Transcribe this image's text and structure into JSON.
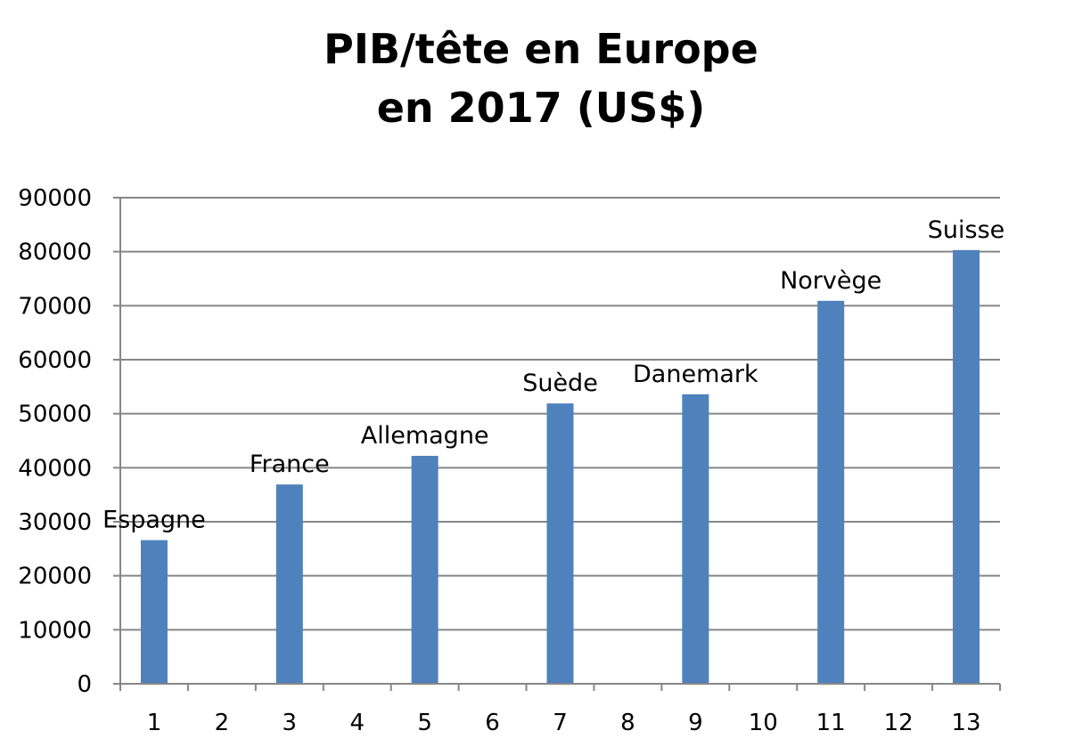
{
  "chart_data": {
    "type": "bar",
    "title": [
      "PIB/tête en Europe",
      "en 2017 (US$)"
    ],
    "xlabel": "",
    "ylabel": "",
    "categories": [
      "1",
      "2",
      "3",
      "4",
      "5",
      "6",
      "7",
      "8",
      "9",
      "10",
      "11",
      "12",
      "13"
    ],
    "series": [
      {
        "values": [
          26600,
          null,
          36900,
          null,
          42200,
          null,
          51900,
          null,
          53600,
          null,
          70900,
          null,
          80300
        ],
        "data_labels": [
          "Espagne",
          "",
          "France",
          "",
          "Allemagne",
          "",
          "Suède",
          "",
          "Danemark",
          "",
          "Norvège",
          "",
          "Suisse"
        ]
      }
    ],
    "ylim": [
      0,
      90000
    ],
    "yticks": [
      0,
      10000,
      20000,
      30000,
      40000,
      50000,
      60000,
      70000,
      80000,
      90000
    ],
    "grid": true,
    "legend": "none",
    "colors": {
      "bar": "#4f81bd",
      "grid": "#868686",
      "axis": "#868686",
      "text": "#000000"
    }
  }
}
